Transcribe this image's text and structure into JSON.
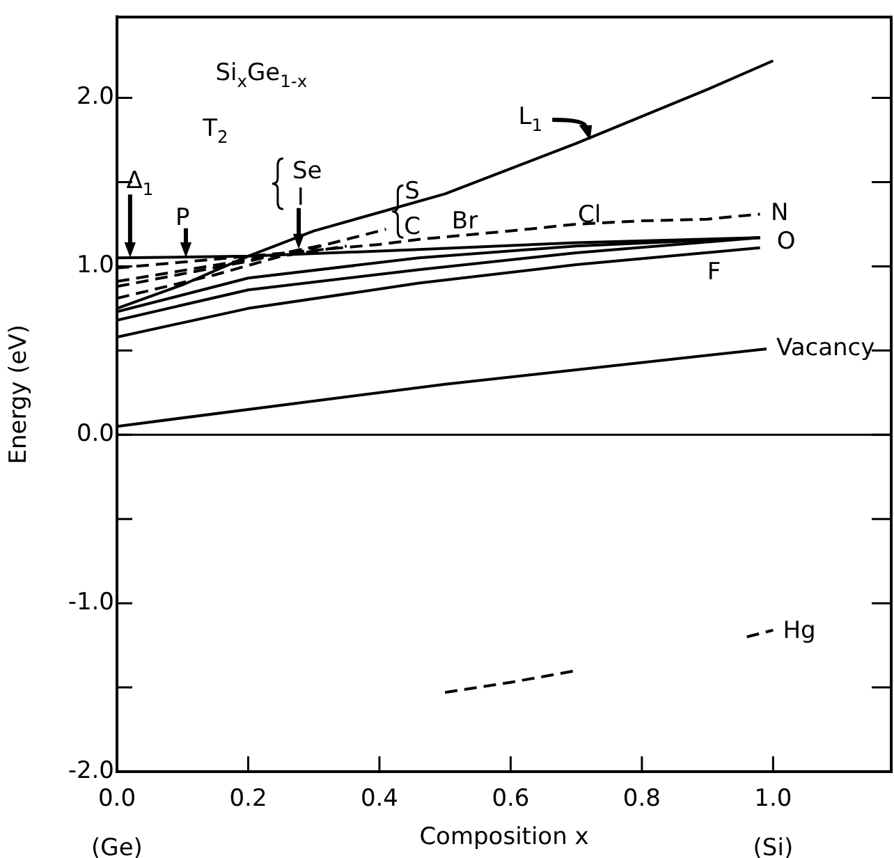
{
  "chart_data": {
    "type": "line",
    "xlabel": "Composition x",
    "ylabel": "Energy (eV)",
    "xlim": [
      0,
      1.18
    ],
    "ylim": [
      -2,
      2.48
    ],
    "xticks": [
      {
        "value": 0,
        "label": "0.0\n(Ge)"
      },
      {
        "value": 0.2,
        "label": "0.2"
      },
      {
        "value": 0.4,
        "label": "0.4"
      },
      {
        "value": 0.6,
        "label": "0.6"
      },
      {
        "value": 0.8,
        "label": "0.8"
      },
      {
        "value": 1,
        "label": "1.0\n(Si)"
      }
    ],
    "yticks": [
      {
        "value": -2,
        "label": "-2.0"
      },
      {
        "value": -1.5,
        "label": null
      },
      {
        "value": -1,
        "label": "-1.0"
      },
      {
        "value": -0.5,
        "label": null
      },
      {
        "value": 0,
        "label": "0.0"
      },
      {
        "value": 0.5,
        "label": null
      },
      {
        "value": 1,
        "label": "1.0"
      },
      {
        "value": 1.5,
        "label": null
      },
      {
        "value": 2,
        "label": "2.0"
      }
    ],
    "grid": false,
    "legend": false,
    "marker": "none",
    "ref_lines": [
      {
        "axis": "y",
        "value": 0,
        "color": "#000000"
      }
    ],
    "series": [
      {
        "color": "#000000",
        "line_style": "solid",
        "x": [
          0,
          0.1,
          0.2,
          0.3,
          0.4,
          0.5,
          0.6,
          0.7,
          0.8,
          0.9,
          1.0
        ],
        "values": [
          0.75,
          0.89,
          1.06,
          1.21,
          1.32,
          1.43,
          1.58,
          1.73,
          1.89,
          2.05,
          2.22
        ]
      },
      {
        "color": "#000000",
        "line_style": "solid",
        "x": [
          0,
          0.2,
          0.46,
          0.7,
          0.98
        ],
        "values": [
          1.05,
          1.06,
          1.1,
          1.14,
          1.17
        ]
      },
      {
        "color": "#000000",
        "line_style": "solid",
        "x": [
          0,
          0.2,
          0.46,
          0.7,
          0.98
        ],
        "values": [
          0.73,
          0.93,
          1.05,
          1.12,
          1.17
        ]
      },
      {
        "color": "#000000",
        "line_style": "solid",
        "x": [
          0,
          0.2,
          0.46,
          0.7,
          0.98
        ],
        "values": [
          0.68,
          0.86,
          0.98,
          1.08,
          1.17
        ]
      },
      {
        "color": "#000000",
        "line_style": "solid",
        "x": [
          0,
          0.2,
          0.46,
          0.7,
          0.98
        ],
        "values": [
          0.58,
          0.75,
          0.9,
          1.01,
          1.11
        ]
      },
      {
        "color": "#000000",
        "line_style": "solid",
        "x": [
          0,
          0.5,
          0.99
        ],
        "values": [
          0.05,
          0.3,
          0.51
        ]
      },
      {
        "color": "#000000",
        "line_style": "dashed",
        "x": [
          0,
          0.2,
          0.4,
          0.46,
          0.6,
          0.7,
          0.8,
          0.9,
          0.98
        ],
        "values": [
          0.99,
          1.06,
          1.13,
          1.16,
          1.21,
          1.25,
          1.27,
          1.28,
          1.31
        ]
      },
      {
        "color": "#000000",
        "line_style": "dashed",
        "x": [
          0,
          0.2,
          0.3,
          0.41
        ],
        "values": [
          0.91,
          1.04,
          1.11,
          1.22
        ]
      },
      {
        "color": "#000000",
        "line_style": "dashed",
        "x": [
          0,
          0.2,
          0.28,
          0.32
        ],
        "values": [
          0.88,
          1.03,
          1.1,
          1.13
        ]
      },
      {
        "color": "#000000",
        "line_style": "dashed",
        "x": [
          0,
          0.15,
          0.25,
          0.35
        ],
        "values": [
          0.81,
          0.95,
          1.06,
          1.12
        ]
      },
      {
        "color": "#000000",
        "line_style": "dashed",
        "x": [
          0.5,
          0.6,
          0.7,
          0.8,
          0.96,
          1.0
        ],
        "values": [
          -1.53,
          -1.47,
          -1.4,
          null,
          -1.2,
          -1.16
        ]
      }
    ],
    "annotations": [
      "Si$_{x}$Ge$_{1-x}$",
      "T$_{2}$",
      "Δ$_{1}$",
      "P",
      "Se",
      "I",
      "S",
      "C",
      "Br",
      "Cl",
      "N",
      "O",
      "F",
      "L$_{1}$",
      "Vacancy",
      "Hg"
    ]
  }
}
